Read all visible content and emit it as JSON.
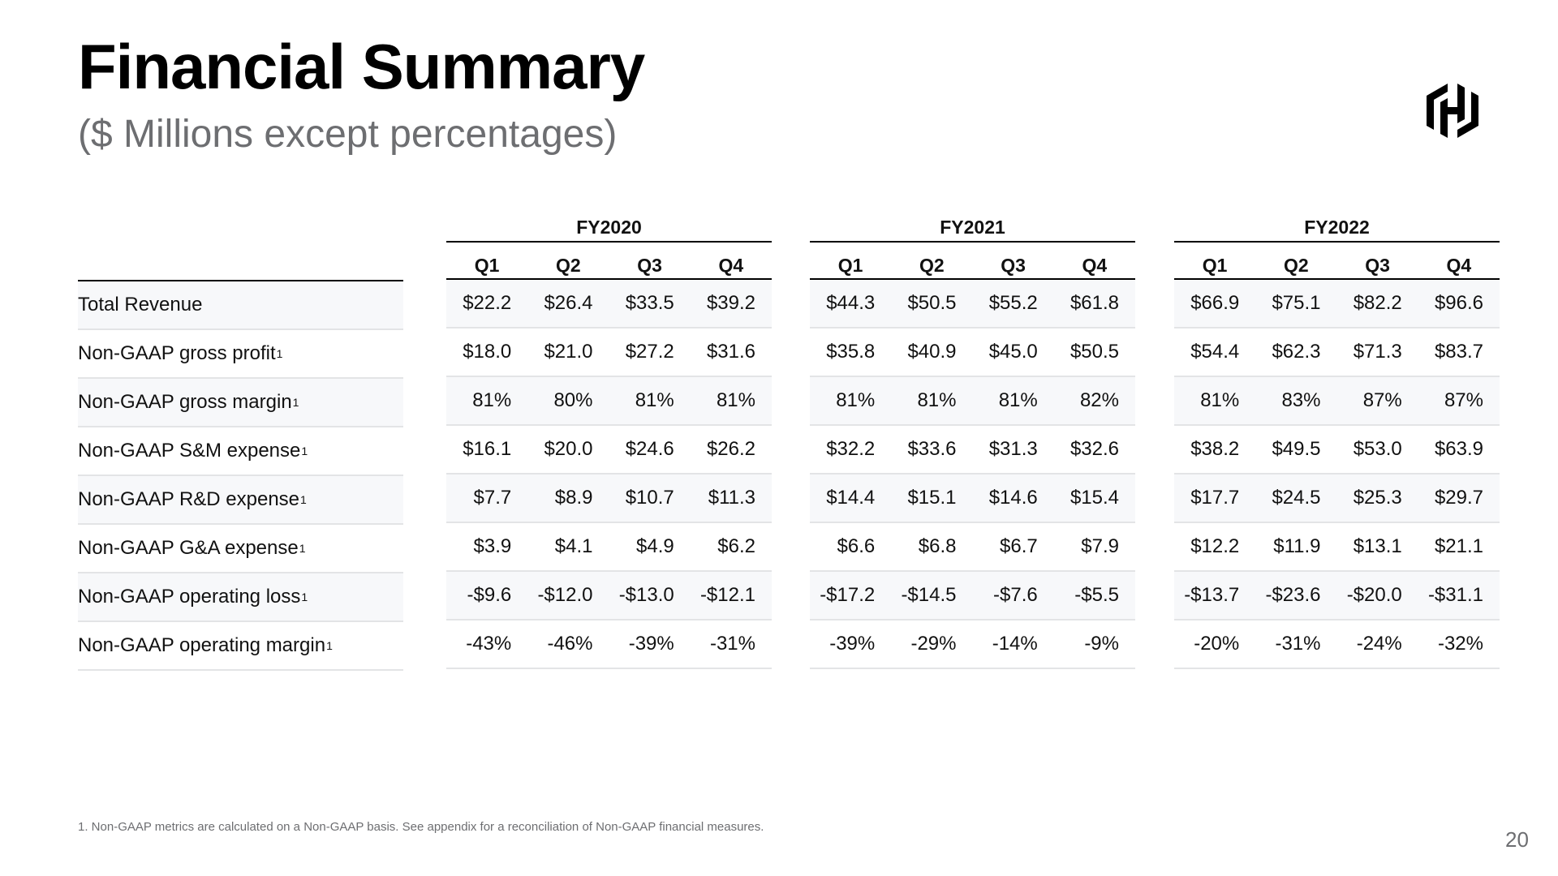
{
  "title": "Financial Summary",
  "subtitle": "($ Millions except percentages)",
  "logo_icon": "hashicorp-logo-icon",
  "row_labels": [
    {
      "text": "Total Revenue",
      "sup": ""
    },
    {
      "text": "Non-GAAP gross profit",
      "sup": "1"
    },
    {
      "text": "Non-GAAP gross margin",
      "sup": "1"
    },
    {
      "text": "Non-GAAP S&M expense",
      "sup": "1"
    },
    {
      "text": "Non-GAAP R&D expense",
      "sup": "1"
    },
    {
      "text": "Non-GAAP G&A expense",
      "sup": "1"
    },
    {
      "text": "Non-GAAP operating loss",
      "sup": "1"
    },
    {
      "text": "Non-GAAP operating margin",
      "sup": "1"
    }
  ],
  "groups": [
    {
      "fy": "FY2020",
      "quarters": [
        "Q1",
        "Q2",
        "Q3",
        "Q4"
      ],
      "rows": [
        [
          "$22.2",
          "$26.4",
          "$33.5",
          "$39.2"
        ],
        [
          "$18.0",
          "$21.0",
          "$27.2",
          "$31.6"
        ],
        [
          "81%",
          "80%",
          "81%",
          "81%"
        ],
        [
          "$16.1",
          "$20.0",
          "$24.6",
          "$26.2"
        ],
        [
          "$7.7",
          "$8.9",
          "$10.7",
          "$11.3"
        ],
        [
          "$3.9",
          "$4.1",
          "$4.9",
          "$6.2"
        ],
        [
          "-$9.6",
          "-$12.0",
          "-$13.0",
          "-$12.1"
        ],
        [
          "-43%",
          "-46%",
          "-39%",
          "-31%"
        ]
      ]
    },
    {
      "fy": "FY2021",
      "quarters": [
        "Q1",
        "Q2",
        "Q3",
        "Q4"
      ],
      "rows": [
        [
          "$44.3",
          "$50.5",
          "$55.2",
          "$61.8"
        ],
        [
          "$35.8",
          "$40.9",
          "$45.0",
          "$50.5"
        ],
        [
          "81%",
          "81%",
          "81%",
          "82%"
        ],
        [
          "$32.2",
          "$33.6",
          "$31.3",
          "$32.6"
        ],
        [
          "$14.4",
          "$15.1",
          "$14.6",
          "$15.4"
        ],
        [
          "$6.6",
          "$6.8",
          "$6.7",
          "$7.9"
        ],
        [
          "-$17.2",
          "-$14.5",
          "-$7.6",
          "-$5.5"
        ],
        [
          "-39%",
          "-29%",
          "-14%",
          "-9%"
        ]
      ]
    },
    {
      "fy": "FY2022",
      "quarters": [
        "Q1",
        "Q2",
        "Q3",
        "Q4"
      ],
      "rows": [
        [
          "$66.9",
          "$75.1",
          "$82.2",
          "$96.6"
        ],
        [
          "$54.4",
          "$62.3",
          "$71.3",
          "$83.7"
        ],
        [
          "81%",
          "83%",
          "87%",
          "87%"
        ],
        [
          "$38.2",
          "$49.5",
          "$53.0",
          "$63.9"
        ],
        [
          "$17.7",
          "$24.5",
          "$25.3",
          "$29.7"
        ],
        [
          "$12.2",
          "$11.9",
          "$13.1",
          "$21.1"
        ],
        [
          "-$13.7",
          "-$23.6",
          "-$20.0",
          "-$31.1"
        ],
        [
          "-20%",
          "-31%",
          "-24%",
          "-32%"
        ]
      ]
    }
  ],
  "footnote": "1. Non-GAAP metrics are calculated on a Non-GAAP basis. See appendix for a reconciliation of Non-GAAP financial measures.",
  "page_number": "20"
}
